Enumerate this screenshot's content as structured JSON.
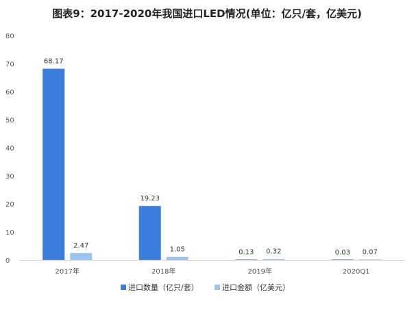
{
  "chart_data": {
    "type": "bar",
    "title": "图表9：2017-2020年我国进口LED情况(单位：亿只/套，亿美元)",
    "xlabel": "",
    "ylabel": "",
    "categories": [
      "2017年",
      "2018年",
      "2019年",
      "2020Q1"
    ],
    "series": [
      {
        "name": "进口数量（亿只/套）",
        "values": [
          68.17,
          19.23,
          0.13,
          0.03
        ],
        "color": "#3b7ddd"
      },
      {
        "name": "进口金额（亿美元）",
        "values": [
          2.47,
          1.05,
          0.32,
          0.07
        ],
        "color": "#9dc3f0"
      }
    ],
    "data_labels": [
      [
        "68.17",
        "19.23",
        "0.13",
        "0.03"
      ],
      [
        "2.47",
        "1.05",
        "0.32",
        "0.07"
      ]
    ],
    "ylim": [
      0,
      80
    ],
    "yticks": [
      0,
      10,
      20,
      30,
      40,
      50,
      60,
      70,
      80
    ],
    "grid": false,
    "legend_position": "bottom"
  }
}
